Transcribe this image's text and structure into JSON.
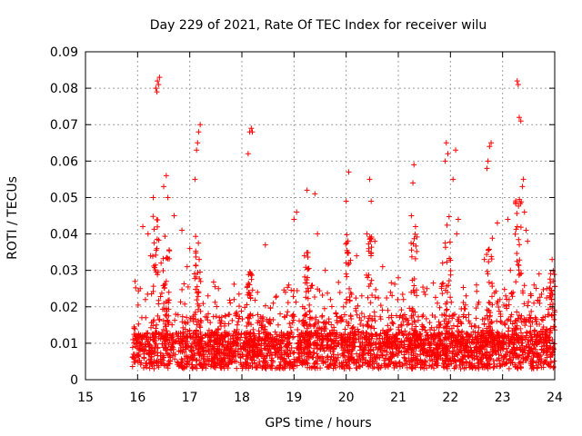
{
  "chart_data": {
    "type": "scatter",
    "title": "Day 229 of 2021, Rate Of TEC Index for receiver wilu",
    "xlabel": "GPS time / hours",
    "ylabel": "ROTI / TECUs",
    "xlim": [
      15,
      24
    ],
    "ylim": [
      0,
      0.09
    ],
    "x_ticks": [
      "15",
      "16",
      "17",
      "18",
      "19",
      "20",
      "21",
      "22",
      "23",
      "24"
    ],
    "y_ticks": [
      "0",
      "0.01",
      "0.02",
      "0.03",
      "0.04",
      "0.05",
      "0.06",
      "0.07",
      "0.08",
      "0.09"
    ],
    "grid": true,
    "marker": "+",
    "color": "#ff0000",
    "series": [
      {
        "name": "ROTI",
        "description": "Dense cloud of ROTI samples from ~15.9 h to 24 h, mostly 0.003-0.02 TECU/s with spikes up to ~0.083",
        "points": [
          [
            16.35,
            0.08
          ],
          [
            16.38,
            0.082
          ],
          [
            16.4,
            0.081
          ],
          [
            16.37,
            0.079
          ],
          [
            16.42,
            0.083
          ],
          [
            17.17,
            0.068
          ],
          [
            17.2,
            0.07
          ],
          [
            17.15,
            0.065
          ],
          [
            17.13,
            0.063
          ],
          [
            17.1,
            0.055
          ],
          [
            18.15,
            0.068
          ],
          [
            18.18,
            0.069
          ],
          [
            18.2,
            0.068
          ],
          [
            18.12,
            0.062
          ],
          [
            23.28,
            0.082
          ],
          [
            23.3,
            0.081
          ],
          [
            23.32,
            0.072
          ],
          [
            23.35,
            0.071
          ],
          [
            21.92,
            0.065
          ],
          [
            21.95,
            0.062
          ],
          [
            21.9,
            0.06
          ],
          [
            22.1,
            0.063
          ],
          [
            22.75,
            0.064
          ],
          [
            22.78,
            0.065
          ],
          [
            22.72,
            0.06
          ],
          [
            22.7,
            0.058
          ],
          [
            20.05,
            0.057
          ],
          [
            16.55,
            0.056
          ],
          [
            16.58,
            0.05
          ],
          [
            16.5,
            0.053
          ],
          [
            19.25,
            0.052
          ],
          [
            19.4,
            0.051
          ],
          [
            20.45,
            0.055
          ],
          [
            21.3,
            0.059
          ],
          [
            21.28,
            0.054
          ],
          [
            23.38,
            0.053
          ],
          [
            23.4,
            0.055
          ],
          [
            22.05,
            0.055
          ],
          [
            16.3,
            0.05
          ],
          [
            20.48,
            0.049
          ],
          [
            20.0,
            0.049
          ],
          [
            23.42,
            0.046
          ],
          [
            16.1,
            0.042
          ],
          [
            16.2,
            0.04
          ],
          [
            16.7,
            0.045
          ],
          [
            16.85,
            0.041
          ],
          [
            17.0,
            0.036
          ],
          [
            18.45,
            0.037
          ],
          [
            19.0,
            0.044
          ],
          [
            19.05,
            0.046
          ],
          [
            19.45,
            0.04
          ],
          [
            20.4,
            0.04
          ],
          [
            20.55,
            0.038
          ],
          [
            21.25,
            0.045
          ],
          [
            21.33,
            0.042
          ],
          [
            22.15,
            0.044
          ],
          [
            22.12,
            0.04
          ],
          [
            22.9,
            0.043
          ],
          [
            23.1,
            0.044
          ],
          [
            23.45,
            0.041
          ],
          [
            23.48,
            0.038
          ],
          [
            23.95,
            0.033
          ],
          [
            16.25,
            0.034
          ],
          [
            16.45,
            0.032
          ],
          [
            16.95,
            0.031
          ],
          [
            19.2,
            0.034
          ],
          [
            19.6,
            0.03
          ],
          [
            20.2,
            0.034
          ],
          [
            20.7,
            0.031
          ],
          [
            21.0,
            0.028
          ],
          [
            21.85,
            0.032
          ],
          [
            22.65,
            0.033
          ],
          [
            23.15,
            0.03
          ],
          [
            23.7,
            0.029
          ],
          [
            15.95,
            0.027
          ],
          [
            16.05,
            0.025
          ],
          [
            16.15,
            0.022
          ],
          [
            16.6,
            0.024
          ],
          [
            17.35,
            0.023
          ],
          [
            17.55,
            0.025
          ],
          [
            17.85,
            0.022
          ],
          [
            18.3,
            0.024
          ],
          [
            18.6,
            0.021
          ],
          [
            18.9,
            0.026
          ],
          [
            19.7,
            0.022
          ],
          [
            19.95,
            0.02
          ],
          [
            20.3,
            0.023
          ],
          [
            20.85,
            0.024
          ],
          [
            21.1,
            0.022
          ],
          [
            21.55,
            0.025
          ],
          [
            21.75,
            0.021
          ],
          [
            22.3,
            0.023
          ],
          [
            22.5,
            0.026
          ],
          [
            22.95,
            0.022
          ],
          [
            23.2,
            0.024
          ],
          [
            23.6,
            0.021
          ],
          [
            23.85,
            0.025
          ]
        ]
      }
    ]
  }
}
